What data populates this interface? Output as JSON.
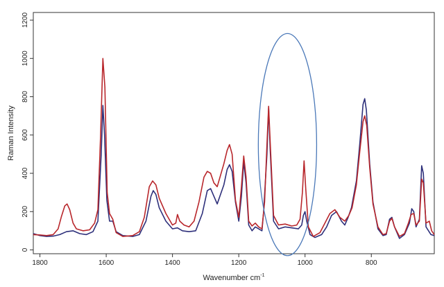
{
  "chart_data": {
    "type": "line",
    "title": "",
    "xlabel": "Wavenumber cm",
    "xlabel_superscript": "-1",
    "ylabel": "Raman Intensity",
    "xlim": [
      1820,
      610
    ],
    "ylim": [
      -20,
      1240
    ],
    "x_reversed": true,
    "grid": false,
    "legend": "none",
    "x_ticks": [
      1800,
      1600,
      1400,
      1200,
      1000,
      800
    ],
    "y_ticks": [
      0,
      200,
      400,
      600,
      800,
      1000,
      1200
    ],
    "series": [
      {
        "color": "#2d2f7a",
        "points": [
          [
            1820,
            85
          ],
          [
            1800,
            75
          ],
          [
            1780,
            70
          ],
          [
            1760,
            72
          ],
          [
            1740,
            80
          ],
          [
            1720,
            95
          ],
          [
            1700,
            100
          ],
          [
            1680,
            85
          ],
          [
            1660,
            80
          ],
          [
            1640,
            95
          ],
          [
            1625,
            150
          ],
          [
            1615,
            500
          ],
          [
            1610,
            755
          ],
          [
            1605,
            600
          ],
          [
            1598,
            260
          ],
          [
            1590,
            150
          ],
          [
            1580,
            150
          ],
          [
            1570,
            95
          ],
          [
            1550,
            75
          ],
          [
            1520,
            70
          ],
          [
            1500,
            80
          ],
          [
            1480,
            150
          ],
          [
            1465,
            280
          ],
          [
            1458,
            310
          ],
          [
            1450,
            290
          ],
          [
            1440,
            220
          ],
          [
            1420,
            150
          ],
          [
            1400,
            110
          ],
          [
            1385,
            115
          ],
          [
            1370,
            100
          ],
          [
            1350,
            95
          ],
          [
            1330,
            100
          ],
          [
            1310,
            190
          ],
          [
            1295,
            310
          ],
          [
            1285,
            320
          ],
          [
            1275,
            280
          ],
          [
            1265,
            240
          ],
          [
            1255,
            290
          ],
          [
            1245,
            340
          ],
          [
            1235,
            420
          ],
          [
            1228,
            445
          ],
          [
            1220,
            410
          ],
          [
            1210,
            250
          ],
          [
            1200,
            150
          ],
          [
            1192,
            280
          ],
          [
            1185,
            460
          ],
          [
            1178,
            350
          ],
          [
            1170,
            130
          ],
          [
            1160,
            100
          ],
          [
            1150,
            120
          ],
          [
            1140,
            110
          ],
          [
            1130,
            100
          ],
          [
            1125,
            200
          ],
          [
            1115,
            500
          ],
          [
            1110,
            740
          ],
          [
            1105,
            520
          ],
          [
            1095,
            150
          ],
          [
            1080,
            110
          ],
          [
            1060,
            120
          ],
          [
            1040,
            115
          ],
          [
            1020,
            110
          ],
          [
            1010,
            130
          ],
          [
            1005,
            180
          ],
          [
            1000,
            200
          ],
          [
            995,
            150
          ],
          [
            985,
            80
          ],
          [
            970,
            65
          ],
          [
            950,
            80
          ],
          [
            935,
            120
          ],
          [
            920,
            180
          ],
          [
            905,
            200
          ],
          [
            890,
            150
          ],
          [
            880,
            130
          ],
          [
            870,
            170
          ],
          [
            860,
            220
          ],
          [
            845,
            360
          ],
          [
            835,
            550
          ],
          [
            825,
            760
          ],
          [
            820,
            790
          ],
          [
            815,
            730
          ],
          [
            805,
            450
          ],
          [
            795,
            250
          ],
          [
            780,
            110
          ],
          [
            765,
            75
          ],
          [
            755,
            80
          ],
          [
            745,
            160
          ],
          [
            738,
            170
          ],
          [
            730,
            120
          ],
          [
            715,
            60
          ],
          [
            700,
            80
          ],
          [
            685,
            140
          ],
          [
            678,
            215
          ],
          [
            672,
            200
          ],
          [
            665,
            120
          ],
          [
            655,
            160
          ],
          [
            648,
            440
          ],
          [
            643,
            400
          ],
          [
            635,
            120
          ],
          [
            620,
            80
          ],
          [
            610,
            75
          ]
        ]
      },
      {
        "color": "#b8262b",
        "points": [
          [
            1820,
            80
          ],
          [
            1800,
            78
          ],
          [
            1780,
            75
          ],
          [
            1760,
            80
          ],
          [
            1745,
            110
          ],
          [
            1735,
            175
          ],
          [
            1725,
            230
          ],
          [
            1718,
            240
          ],
          [
            1710,
            210
          ],
          [
            1700,
            140
          ],
          [
            1690,
            110
          ],
          [
            1670,
            100
          ],
          [
            1650,
            105
          ],
          [
            1635,
            140
          ],
          [
            1625,
            210
          ],
          [
            1617,
            600
          ],
          [
            1610,
            1000
          ],
          [
            1604,
            850
          ],
          [
            1597,
            300
          ],
          [
            1590,
            190
          ],
          [
            1580,
            160
          ],
          [
            1570,
            90
          ],
          [
            1550,
            70
          ],
          [
            1520,
            75
          ],
          [
            1500,
            95
          ],
          [
            1485,
            170
          ],
          [
            1470,
            330
          ],
          [
            1460,
            360
          ],
          [
            1450,
            340
          ],
          [
            1440,
            270
          ],
          [
            1420,
            190
          ],
          [
            1400,
            130
          ],
          [
            1390,
            140
          ],
          [
            1385,
            185
          ],
          [
            1378,
            150
          ],
          [
            1365,
            130
          ],
          [
            1350,
            120
          ],
          [
            1335,
            150
          ],
          [
            1320,
            250
          ],
          [
            1305,
            380
          ],
          [
            1295,
            410
          ],
          [
            1285,
            400
          ],
          [
            1275,
            350
          ],
          [
            1265,
            330
          ],
          [
            1255,
            390
          ],
          [
            1245,
            450
          ],
          [
            1235,
            520
          ],
          [
            1228,
            550
          ],
          [
            1220,
            500
          ],
          [
            1210,
            260
          ],
          [
            1200,
            170
          ],
          [
            1192,
            330
          ],
          [
            1185,
            490
          ],
          [
            1178,
            380
          ],
          [
            1170,
            150
          ],
          [
            1160,
            125
          ],
          [
            1150,
            140
          ],
          [
            1140,
            120
          ],
          [
            1130,
            110
          ],
          [
            1122,
            250
          ],
          [
            1115,
            550
          ],
          [
            1110,
            750
          ],
          [
            1105,
            560
          ],
          [
            1095,
            180
          ],
          [
            1080,
            130
          ],
          [
            1060,
            135
          ],
          [
            1040,
            125
          ],
          [
            1025,
            130
          ],
          [
            1015,
            160
          ],
          [
            1008,
            300
          ],
          [
            1003,
            465
          ],
          [
            998,
            320
          ],
          [
            990,
            120
          ],
          [
            975,
            70
          ],
          [
            955,
            90
          ],
          [
            940,
            140
          ],
          [
            925,
            190
          ],
          [
            910,
            210
          ],
          [
            895,
            170
          ],
          [
            880,
            150
          ],
          [
            868,
            180
          ],
          [
            858,
            220
          ],
          [
            845,
            340
          ],
          [
            835,
            510
          ],
          [
            825,
            670
          ],
          [
            820,
            700
          ],
          [
            814,
            650
          ],
          [
            805,
            430
          ],
          [
            795,
            240
          ],
          [
            780,
            120
          ],
          [
            765,
            80
          ],
          [
            755,
            85
          ],
          [
            745,
            150
          ],
          [
            738,
            165
          ],
          [
            730,
            120
          ],
          [
            715,
            70
          ],
          [
            700,
            85
          ],
          [
            688,
            140
          ],
          [
            680,
            185
          ],
          [
            672,
            190
          ],
          [
            665,
            130
          ],
          [
            655,
            150
          ],
          [
            648,
            370
          ],
          [
            643,
            350
          ],
          [
            635,
            140
          ],
          [
            625,
            150
          ],
          [
            618,
            100
          ],
          [
            610,
            80
          ]
        ]
      }
    ],
    "annotation": {
      "shape": "ellipse",
      "color": "#4a78b8",
      "center": [
        1053,
        550
      ],
      "half_width": 88,
      "half_height": 580
    }
  }
}
